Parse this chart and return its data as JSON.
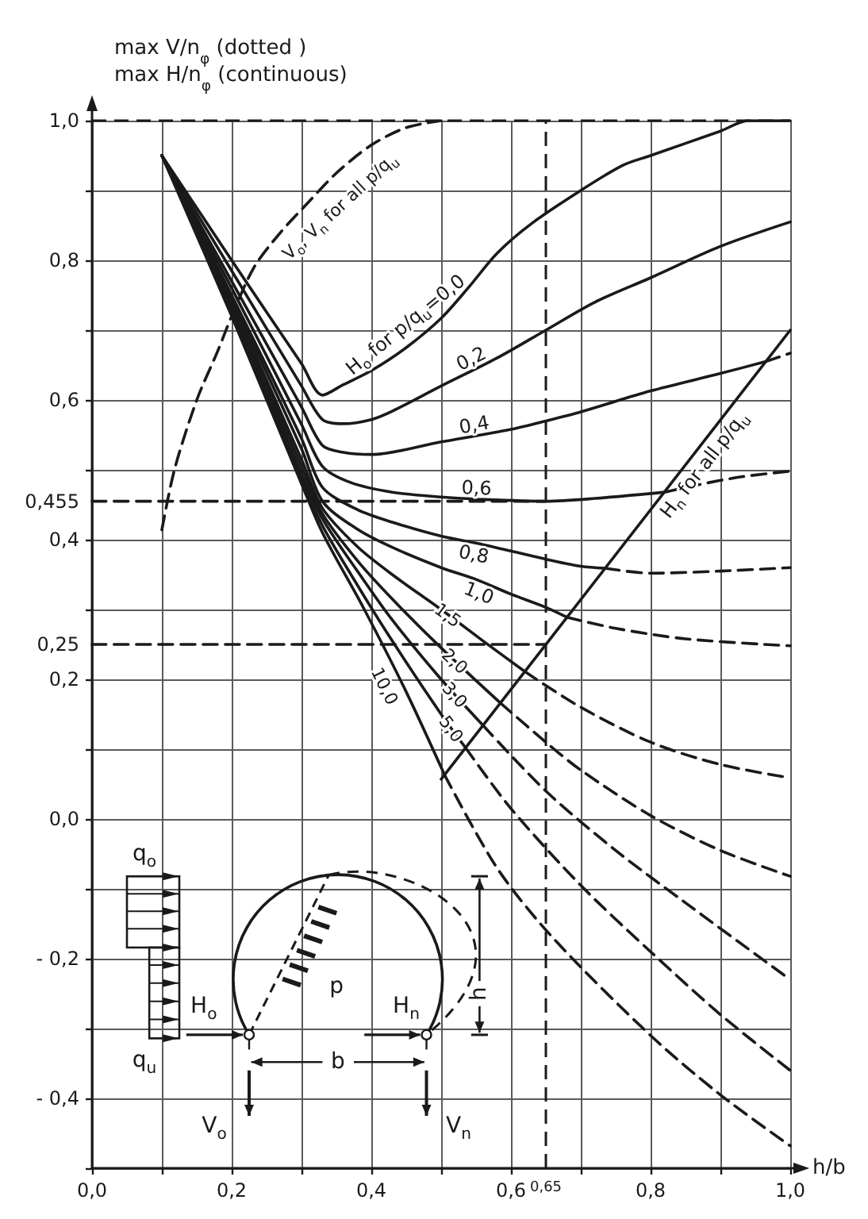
{
  "chart_data": {
    "type": "line",
    "ylabel": "max V/n$_{φ}$ (dotted )\nmax H/n$_{φ}$ (continuous)",
    "xlabel": "h/b",
    "xlim": [
      0,
      1.0
    ],
    "ylim": [
      -0.5,
      1.0
    ],
    "xticks": [
      {
        "value": 0,
        "label": "0,0"
      },
      {
        "value": 0.1,
        "label": null
      },
      {
        "value": 0.2,
        "label": "0,2"
      },
      {
        "value": 0.3,
        "label": null
      },
      {
        "value": 0.4,
        "label": "0,4"
      },
      {
        "value": 0.5,
        "label": null
      },
      {
        "value": 0.6,
        "label": "0,6"
      },
      {
        "value": 0.65,
        "label": "0,65"
      },
      {
        "value": 0.7,
        "label": null
      },
      {
        "value": 0.8,
        "label": "0,8"
      },
      {
        "value": 0.9,
        "label": null
      },
      {
        "value": 1.0,
        "label": "1,0"
      }
    ],
    "yticks": [
      {
        "value": -0.5,
        "label": null
      },
      {
        "value": -0.4,
        "label": "- 0,4"
      },
      {
        "value": -0.3,
        "label": null
      },
      {
        "value": -0.2,
        "label": "- 0,2"
      },
      {
        "value": -0.1,
        "label": null
      },
      {
        "value": 0,
        "label": "0,0"
      },
      {
        "value": 0.1,
        "label": null
      },
      {
        "value": 0.2,
        "label": "0,2"
      },
      {
        "value": 0.25,
        "label": "0,25"
      },
      {
        "value": 0.3,
        "label": null
      },
      {
        "value": 0.4,
        "label": "0,4"
      },
      {
        "value": 0.455,
        "label": "0,455"
      },
      {
        "value": 0.5,
        "label": null
      },
      {
        "value": 0.6,
        "label": "0,6"
      },
      {
        "value": 0.7,
        "label": null
      },
      {
        "value": 0.8,
        "label": "0,8"
      },
      {
        "value": 0.9,
        "label": null
      },
      {
        "value": 1.0,
        "label": "1,0"
      }
    ],
    "grid": true,
    "marker": "none",
    "series": [
      {
        "name": "V$_{o}$, V$_{n}$ for all p/q$_{u}$",
        "color": "#1a1a1a",
        "line_style": "dashed",
        "x": [
          0.1,
          0.118,
          0.15,
          0.18,
          0.2,
          0.232,
          0.27,
          0.307,
          0.35,
          0.4,
          0.45,
          0.5
        ],
        "values": [
          0.414,
          0.5,
          0.6,
          0.67,
          0.72,
          0.79,
          0.84,
          0.88,
          0.925,
          0.965,
          0.99,
          1.0
        ]
      },
      {
        "name": "H$_{o}$ for p/q$_{u}$=0,0",
        "color": "#1a1a1a",
        "line_style": "solid",
        "x": [
          0.1,
          0.2,
          0.3,
          0.33,
          0.36,
          0.4,
          0.45,
          0.5,
          0.54,
          0.58,
          0.63,
          0.7,
          0.76,
          0.8,
          0.9,
          0.94,
          1.0
        ],
        "values": [
          0.95,
          0.8,
          0.652,
          0.607,
          0.622,
          0.642,
          0.675,
          0.717,
          0.762,
          0.81,
          0.853,
          0.9,
          0.936,
          0.95,
          0.985,
          1.0,
          1.0
        ]
      },
      {
        "name": "0,2",
        "color": "#1a1a1a",
        "line_style": "solid",
        "x": [
          0.1,
          0.2,
          0.3,
          0.33,
          0.36,
          0.4,
          0.43,
          0.5,
          0.58,
          0.65,
          0.72,
          0.8,
          0.9,
          1.0
        ],
        "values": [
          0.95,
          0.785,
          0.62,
          0.572,
          0.566,
          0.572,
          0.584,
          0.62,
          0.66,
          0.7,
          0.74,
          0.775,
          0.82,
          0.855
        ]
      },
      {
        "name": "0,4",
        "color": "#1a1a1a",
        "line_style": "solid",
        "x": [
          0.1,
          0.2,
          0.3,
          0.33,
          0.36,
          0.4,
          0.5,
          0.6,
          0.65,
          0.7,
          0.8,
          0.9,
          0.965
        ],
        "values": [
          0.95,
          0.77,
          0.59,
          0.535,
          0.525,
          0.522,
          0.54,
          0.558,
          0.57,
          0.583,
          0.613,
          0.638,
          0.655
        ]
      },
      {
        "color": "#1a1a1a",
        "line_style": "dashed",
        "x": [
          0.965,
          1.0
        ],
        "values": [
          0.655,
          0.667
        ]
      },
      {
        "name": "0,6",
        "color": "#1a1a1a",
        "line_style": "solid",
        "x": [
          0.1,
          0.2,
          0.3,
          0.33,
          0.37,
          0.43,
          0.5,
          0.55,
          0.65,
          0.72,
          0.82
        ],
        "values": [
          0.95,
          0.76,
          0.565,
          0.505,
          0.482,
          0.468,
          0.461,
          0.458,
          0.455,
          0.459,
          0.468
        ]
      },
      {
        "color": "#1a1a1a",
        "line_style": "dashed",
        "x": [
          0.82,
          0.87,
          0.93,
          1.0
        ],
        "values": [
          0.468,
          0.479,
          0.49,
          0.498
        ]
      },
      {
        "name": "0,8",
        "color": "#1a1a1a",
        "line_style": "solid",
        "x": [
          0.1,
          0.2,
          0.3,
          0.33,
          0.38,
          0.43,
          0.5,
          0.56,
          0.65,
          0.7,
          0.735
        ],
        "values": [
          0.95,
          0.75,
          0.545,
          0.475,
          0.443,
          0.425,
          0.405,
          0.393,
          0.372,
          0.362,
          0.359
        ]
      },
      {
        "color": "#1a1a1a",
        "line_style": "dashed",
        "x": [
          0.735,
          0.8,
          0.9,
          1.0
        ],
        "values": [
          0.359,
          0.352,
          0.355,
          0.36
        ]
      },
      {
        "name": "1,0",
        "color": "#1a1a1a",
        "line_style": "solid",
        "x": [
          0.1,
          0.2,
          0.3,
          0.33,
          0.38,
          0.43,
          0.5,
          0.55,
          0.6,
          0.65,
          0.68
        ],
        "values": [
          0.95,
          0.745,
          0.53,
          0.455,
          0.415,
          0.389,
          0.36,
          0.343,
          0.322,
          0.303,
          0.289
        ]
      },
      {
        "color": "#1a1a1a",
        "line_style": "dashed",
        "x": [
          0.68,
          0.75,
          0.85,
          1.0
        ],
        "values": [
          0.289,
          0.273,
          0.258,
          0.248
        ]
      },
      {
        "name": "1,5",
        "color": "#1a1a1a",
        "line_style": "solid",
        "x": [
          0.1,
          0.2,
          0.3,
          0.33,
          0.38,
          0.43,
          0.5,
          0.56,
          0.62
        ],
        "values": [
          0.95,
          0.74,
          0.515,
          0.445,
          0.39,
          0.35,
          0.3,
          0.255,
          0.211
        ]
      },
      {
        "color": "#1a1a1a",
        "line_style": "dashed",
        "x": [
          0.62,
          0.7,
          0.8,
          0.9,
          1.0
        ],
        "values": [
          0.211,
          0.16,
          0.11,
          0.078,
          0.059
        ]
      },
      {
        "name": "2,0",
        "color": "#1a1a1a",
        "line_style": "solid",
        "x": [
          0.1,
          0.2,
          0.3,
          0.33,
          0.38,
          0.43,
          0.5,
          0.585
        ],
        "values": [
          0.95,
          0.737,
          0.505,
          0.437,
          0.37,
          0.315,
          0.245,
          0.166
        ]
      },
      {
        "color": "#1a1a1a",
        "line_style": "dashed",
        "x": [
          0.585,
          0.65,
          0.7,
          0.8,
          0.9,
          1.0
        ],
        "values": [
          0.166,
          0.11,
          0.07,
          0.005,
          -0.045,
          -0.082
        ]
      },
      {
        "name": "3,0",
        "color": "#1a1a1a",
        "line_style": "solid",
        "x": [
          0.1,
          0.2,
          0.3,
          0.33,
          0.38,
          0.43,
          0.5,
          0.56
        ],
        "values": [
          0.95,
          0.733,
          0.495,
          0.43,
          0.355,
          0.285,
          0.2,
          0.134
        ]
      },
      {
        "color": "#1a1a1a",
        "line_style": "dashed",
        "x": [
          0.56,
          0.65,
          0.75,
          0.85,
          1.0
        ],
        "values": [
          0.134,
          0.04,
          -0.045,
          -0.12,
          -0.23
        ]
      },
      {
        "name": "5,0",
        "color": "#1a1a1a",
        "line_style": "solid",
        "x": [
          0.1,
          0.2,
          0.3,
          0.33,
          0.38,
          0.43,
          0.5,
          0.535
        ],
        "values": [
          0.95,
          0.728,
          0.487,
          0.42,
          0.335,
          0.255,
          0.15,
          0.102
        ]
      },
      {
        "color": "#1a1a1a",
        "line_style": "dashed",
        "x": [
          0.535,
          0.6,
          0.7,
          0.8,
          0.9,
          1.0
        ],
        "values": [
          0.102,
          0.015,
          -0.095,
          -0.19,
          -0.28,
          -0.36
        ]
      },
      {
        "name": "10,0",
        "color": "#1a1a1a",
        "line_style": "solid",
        "x": [
          0.1,
          0.2,
          0.3,
          0.33,
          0.39,
          0.45,
          0.505
        ],
        "values": [
          0.95,
          0.72,
          0.48,
          0.41,
          0.3,
          0.182,
          0.063
        ]
      },
      {
        "color": "#1a1a1a",
        "line_style": "dashed",
        "x": [
          0.505,
          0.58,
          0.66,
          0.8,
          0.9,
          1.0
        ],
        "values": [
          0.063,
          -0.07,
          -0.17,
          -0.31,
          -0.395,
          -0.468
        ]
      },
      {
        "name": "H$_{n}$ for all p/q$_{u}$",
        "color": "#1a1a1a",
        "line_style": "solid",
        "x": [
          0.5,
          1.0
        ],
        "values": [
          0.057,
          0.7
        ]
      },
      {
        "color": "#1a1a1a",
        "line_style": "dashed",
        "x": [
          0,
          0.65
        ],
        "values": [
          0.455,
          0.455
        ]
      },
      {
        "color": "#1a1a1a",
        "line_style": "dashed",
        "x": [
          0,
          0.65
        ],
        "values": [
          0.25,
          0.25
        ]
      }
    ],
    "ref_lines": [
      {
        "axis": "x",
        "value": 0.65,
        "color": "#1a1a1a",
        "line_style": "dashed"
      },
      {
        "axis": "y",
        "value": 1.0,
        "color": "#1a1a1a",
        "line_style": "dashed"
      }
    ],
    "annotations": [
      "q$_{o}$",
      "q$_{u}$",
      "p",
      "H$_{o}$",
      "H$_{n}$",
      "V$_{o}$",
      "V$_{n}$",
      "b",
      "h"
    ]
  }
}
